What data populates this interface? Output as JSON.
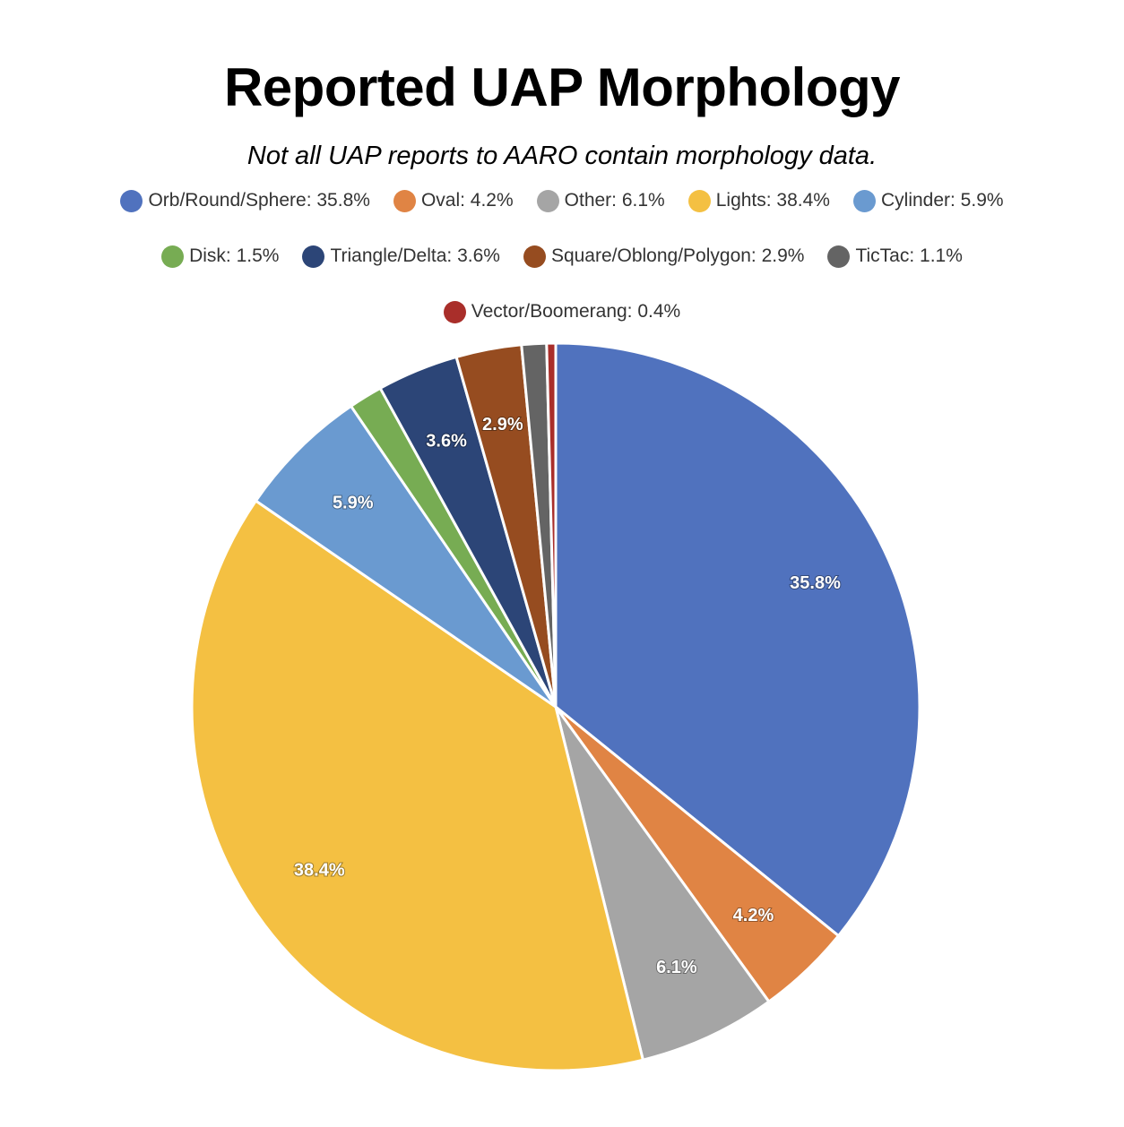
{
  "chart_data": {
    "type": "pie",
    "title": "Reported UAP Morphology",
    "subtitle": "Not all UAP reports to AARO contain morphology data.",
    "legend_position": "top",
    "slices": [
      {
        "label": "Orb/Round/Sphere",
        "value": 35.8,
        "value_label": "35.8%",
        "legend_text": "Orb/Round/Sphere: 35.8%",
        "color": "#5072BE"
      },
      {
        "label": "Oval",
        "value": 4.2,
        "value_label": "4.2%",
        "legend_text": "Oval: 4.2%",
        "color": "#E08444"
      },
      {
        "label": "Other",
        "value": 6.1,
        "value_label": "6.1%",
        "legend_text": "Other: 6.1%",
        "color": "#A5A5A5"
      },
      {
        "label": "Lights",
        "value": 38.4,
        "value_label": "38.4%",
        "legend_text": "Lights: 38.4%",
        "color": "#F4C042"
      },
      {
        "label": "Cylinder",
        "value": 5.9,
        "value_label": "5.9%",
        "legend_text": "Cylinder: 5.9%",
        "color": "#6A9AD0"
      },
      {
        "label": "Disk",
        "value": 1.5,
        "value_label": "",
        "legend_text": "Disk: 1.5%",
        "color": "#77AC53"
      },
      {
        "label": "Triangle/Delta",
        "value": 3.6,
        "value_label": "3.6%",
        "legend_text": "Triangle/Delta: 3.6%",
        "color": "#2C4577"
      },
      {
        "label": "Square/Oblong/Polygon",
        "value": 2.9,
        "value_label": "2.9%",
        "legend_text": "Square/Oblong/Polygon: 2.9%",
        "color": "#964C20"
      },
      {
        "label": "TicTac",
        "value": 1.1,
        "value_label": "",
        "legend_text": "TicTac: 1.1%",
        "color": "#646464"
      },
      {
        "label": "Vector/Boomerang",
        "value": 0.4,
        "value_label": "",
        "legend_text": "Vector/Boomerang: 0.4%",
        "color": "#A92E2A"
      }
    ]
  }
}
